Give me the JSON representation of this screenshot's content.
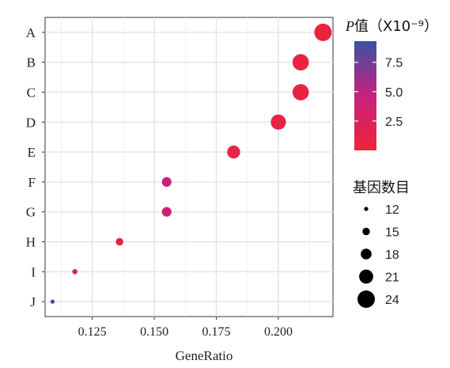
{
  "chart_data": {
    "type": "scatter",
    "xlabel": "GeneRatio",
    "xlim": [
      0.106,
      0.222
    ],
    "x_ticks": [
      "0.125",
      "0.150",
      "0.175",
      "0.200"
    ],
    "x_tick_values": [
      0.125,
      0.15,
      0.175,
      0.2
    ],
    "categories": [
      "A",
      "B",
      "C",
      "D",
      "E",
      "F",
      "G",
      "H",
      "I",
      "J"
    ],
    "points": [
      {
        "label": "A",
        "x": 0.218,
        "count": 24,
        "p": 0.3
      },
      {
        "label": "B",
        "x": 0.209,
        "count": 23,
        "p": 0.6
      },
      {
        "label": "C",
        "x": 0.209,
        "count": 23,
        "p": 0.6
      },
      {
        "label": "D",
        "x": 0.2,
        "count": 22,
        "p": 0.9
      },
      {
        "label": "E",
        "x": 0.182,
        "count": 20,
        "p": 1.0
      },
      {
        "label": "F",
        "x": 0.155,
        "count": 17,
        "p": 4.3
      },
      {
        "label": "G",
        "x": 0.155,
        "count": 17,
        "p": 4.0
      },
      {
        "label": "H",
        "x": 0.136,
        "count": 15,
        "p": 1.2
      },
      {
        "label": "I",
        "x": 0.118,
        "count": 13,
        "p": 3.0
      },
      {
        "label": "J",
        "x": 0.109,
        "count": 12,
        "p": 9.2
      }
    ],
    "color_legend": {
      "title_italic": "P",
      "title_rest": "值（X10⁻⁹）",
      "range": [
        0.0,
        9.3
      ],
      "ticks": [
        "7.5",
        "5.0",
        "2.5"
      ],
      "tick_values": [
        7.5,
        5.0,
        2.5
      ],
      "color_low": "#f0233a",
      "color_mid": "#c7217f",
      "color_high": "#3a52a3"
    },
    "size_legend": {
      "title": "基因数目",
      "entries": [
        "12",
        "15",
        "18",
        "21",
        "24"
      ],
      "entry_values": [
        12,
        15,
        18,
        21,
        24
      ]
    },
    "grid": true,
    "panel_color": "#ffffff",
    "grid_color": "#e3e3e3"
  }
}
